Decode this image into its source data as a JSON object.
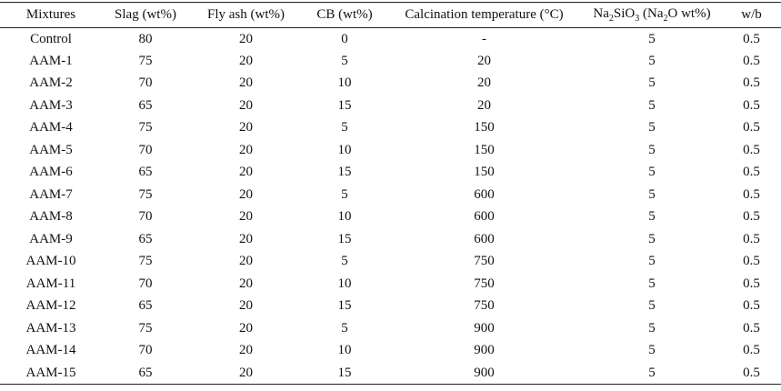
{
  "table": {
    "headers": {
      "mixtures": "Mixtures",
      "slag": "Slag (wt%)",
      "fly_ash": "Fly ash (wt%)",
      "cb": "CB (wt%)",
      "calcination": "Calcination temperature (°C)",
      "silicate_prefix": "Na",
      "silicate_sub1": "2",
      "silicate_mid": "SiO",
      "silicate_sub2": "3",
      "silicate_paren": " (Na",
      "silicate_sub3": "2",
      "silicate_suffix": "O wt%)",
      "wb": "w/b"
    },
    "rows": [
      [
        "Control",
        "80",
        "20",
        "0",
        "-",
        "5",
        "0.5"
      ],
      [
        "AAM-1",
        "75",
        "20",
        "5",
        "20",
        "5",
        "0.5"
      ],
      [
        "AAM-2",
        "70",
        "20",
        "10",
        "20",
        "5",
        "0.5"
      ],
      [
        "AAM-3",
        "65",
        "20",
        "15",
        "20",
        "5",
        "0.5"
      ],
      [
        "AAM-4",
        "75",
        "20",
        "5",
        "150",
        "5",
        "0.5"
      ],
      [
        "AAM-5",
        "70",
        "20",
        "10",
        "150",
        "5",
        "0.5"
      ],
      [
        "AAM-6",
        "65",
        "20",
        "15",
        "150",
        "5",
        "0.5"
      ],
      [
        "AAM-7",
        "75",
        "20",
        "5",
        "600",
        "5",
        "0.5"
      ],
      [
        "AAM-8",
        "70",
        "20",
        "10",
        "600",
        "5",
        "0.5"
      ],
      [
        "AAM-9",
        "65",
        "20",
        "15",
        "600",
        "5",
        "0.5"
      ],
      [
        "AAM-10",
        "75",
        "20",
        "5",
        "750",
        "5",
        "0.5"
      ],
      [
        "AAM-11",
        "70",
        "20",
        "10",
        "750",
        "5",
        "0.5"
      ],
      [
        "AAM-12",
        "65",
        "20",
        "15",
        "750",
        "5",
        "0.5"
      ],
      [
        "AAM-13",
        "75",
        "20",
        "5",
        "900",
        "5",
        "0.5"
      ],
      [
        "AAM-14",
        "70",
        "20",
        "10",
        "900",
        "5",
        "0.5"
      ],
      [
        "AAM-15",
        "65",
        "20",
        "15",
        "900",
        "5",
        "0.5"
      ]
    ]
  }
}
